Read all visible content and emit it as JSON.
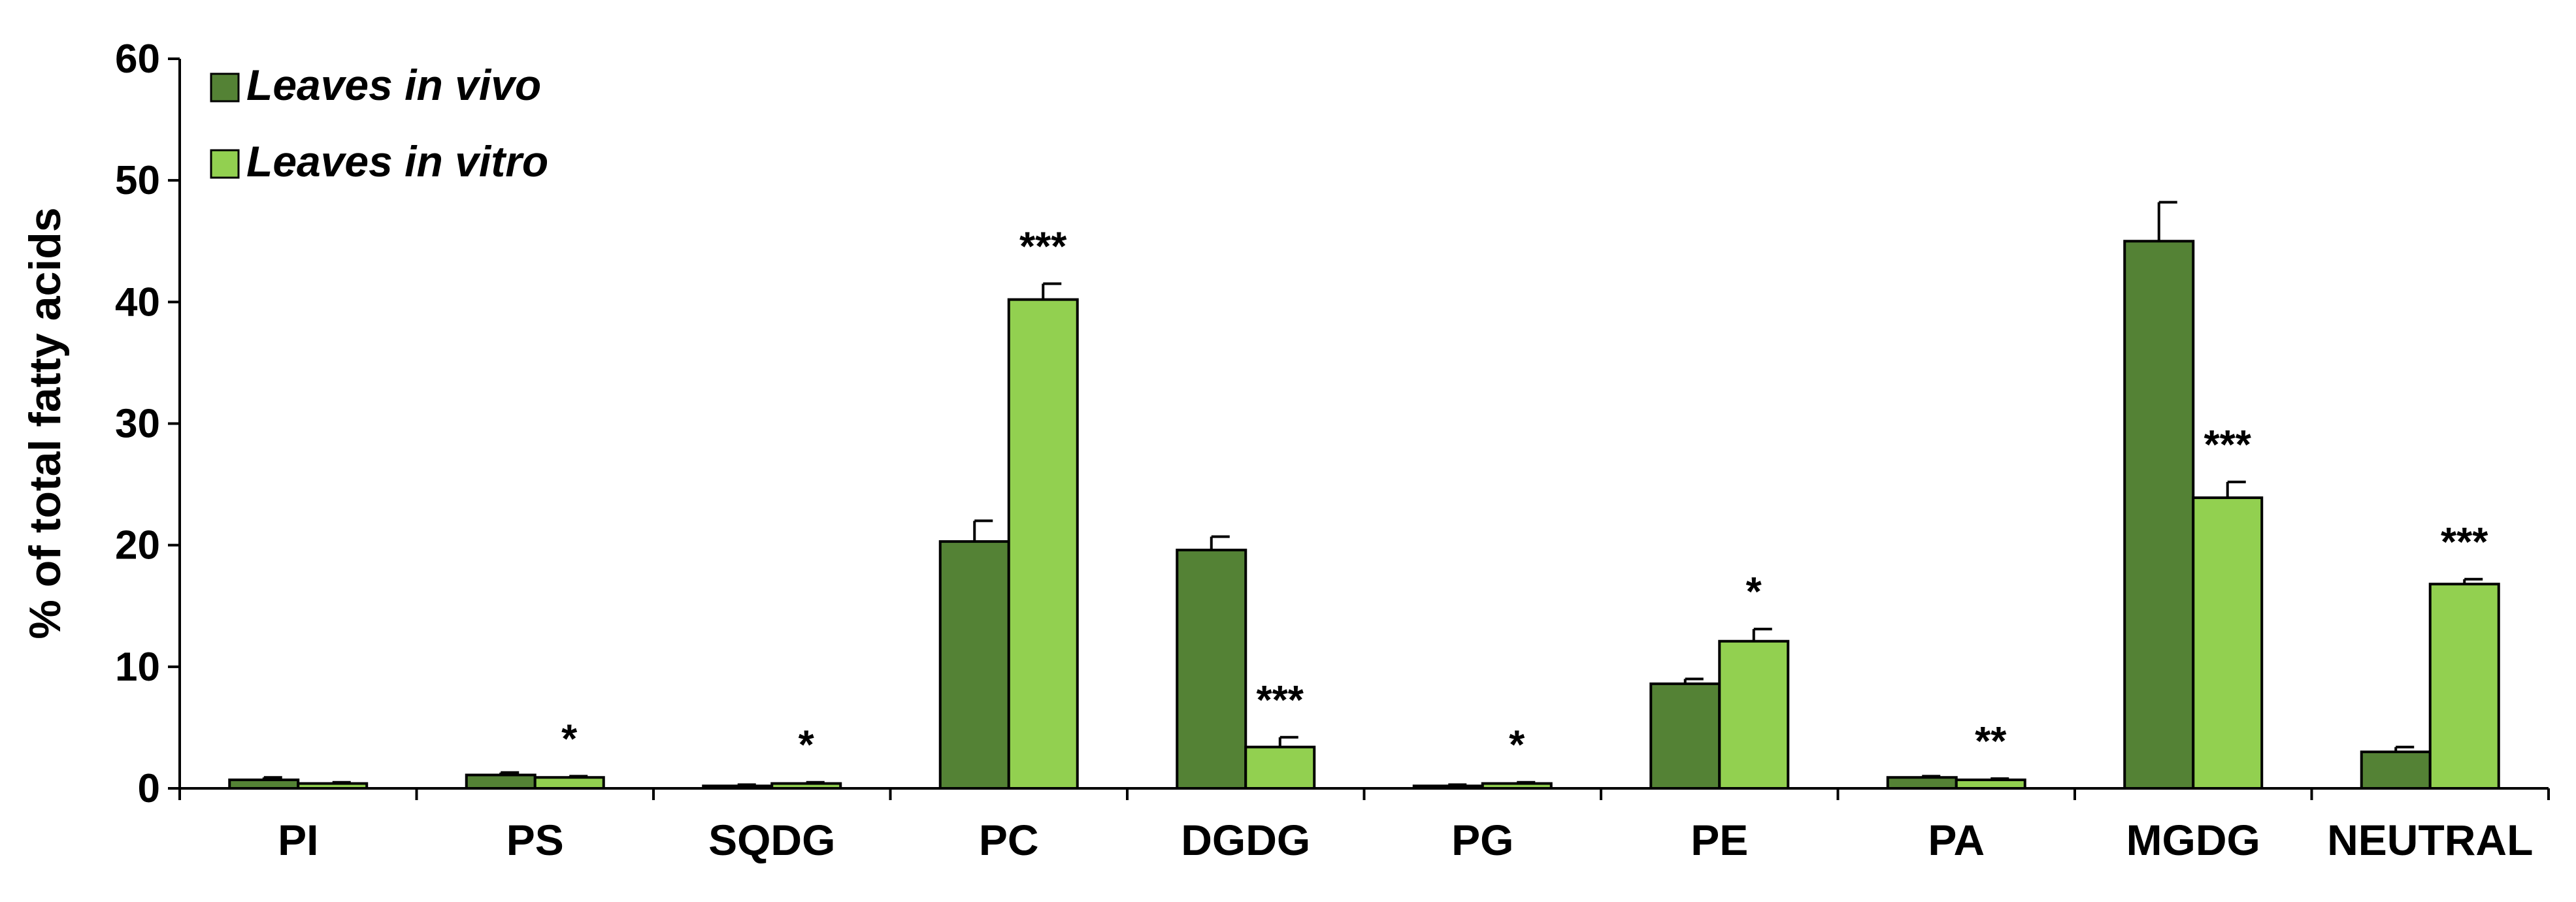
{
  "colors": {
    "in_vivo": "#548235",
    "in_vitro": "#92d050",
    "axis": "#000000"
  },
  "chart_data": {
    "type": "bar",
    "ylabel": "% of total fatty acids",
    "xlabel": "",
    "ylim": [
      0,
      60
    ],
    "yticks": [
      0,
      10,
      20,
      30,
      40,
      50,
      60
    ],
    "grid": false,
    "legend_position": "top-left",
    "categories": [
      "PI",
      "PS",
      "SQDG",
      "PC",
      "DGDG",
      "PG",
      "PE",
      "PA",
      "MGDG",
      "NEUTRAL"
    ],
    "series": [
      {
        "name": "Leaves in vivo",
        "values": [
          0.7,
          1.1,
          0.2,
          20.3,
          19.6,
          0.2,
          8.6,
          0.9,
          45.0,
          3.0
        ],
        "errors": [
          0.2,
          0.2,
          0.1,
          1.7,
          1.1,
          0.1,
          0.4,
          0.1,
          3.2,
          0.4
        ]
      },
      {
        "name": "Leaves in vitro",
        "values": [
          0.4,
          0.9,
          0.4,
          40.2,
          3.4,
          0.4,
          12.1,
          0.7,
          23.9,
          16.8
        ],
        "errors": [
          0.1,
          0.1,
          0.1,
          1.3,
          0.8,
          0.1,
          1.0,
          0.1,
          1.3,
          0.4
        ]
      }
    ],
    "significance": [
      "",
      "*",
      "*",
      "***",
      "***",
      "*",
      "*",
      "**",
      "***",
      "***"
    ]
  }
}
